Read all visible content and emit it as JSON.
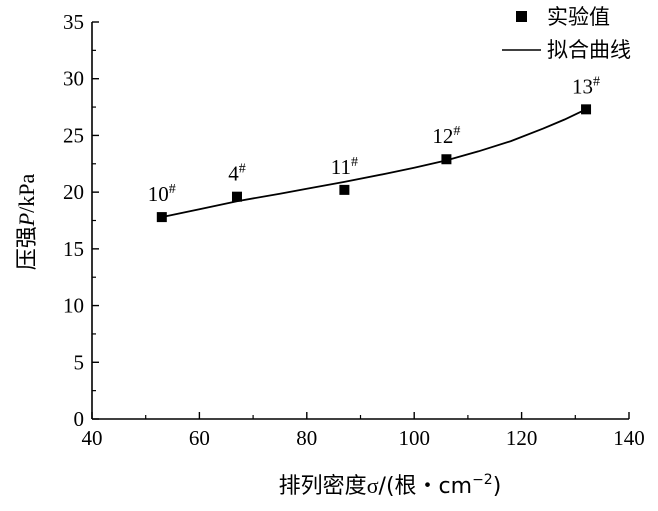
{
  "chart_data": {
    "type": "scatter",
    "title": "",
    "xlabel_prefix": "排列密度",
    "xlabel_symbol": "σ",
    "xlabel_unit_open": "/(根・cm",
    "xlabel_exponent": "−2",
    "xlabel_unit_close": ")",
    "ylabel_prefix": "压强",
    "ylabel_symbol": "P",
    "ylabel_unit": "/kPa",
    "xlim": [
      40,
      140
    ],
    "ylim": [
      0,
      35
    ],
    "x_ticks": [
      40,
      60,
      80,
      100,
      120,
      140
    ],
    "y_ticks": [
      0,
      5,
      10,
      15,
      20,
      25,
      30,
      35
    ],
    "grid": false,
    "legend_position": "top-right",
    "series": [
      {
        "name": "实验值",
        "kind": "scatter",
        "marker": "square",
        "color": "#000000",
        "points": [
          {
            "x": 53,
            "y": 17.8,
            "label": "10",
            "sup": "#"
          },
          {
            "x": 67,
            "y": 19.6,
            "label": "4",
            "sup": "#"
          },
          {
            "x": 87,
            "y": 20.2,
            "label": "11",
            "sup": "#"
          },
          {
            "x": 106,
            "y": 22.9,
            "label": "12",
            "sup": "#"
          },
          {
            "x": 132,
            "y": 27.3,
            "label": "13",
            "sup": "#"
          }
        ]
      },
      {
        "name": "拟合曲线",
        "kind": "line",
        "color": "#000000",
        "x": [
          53,
          60,
          67,
          75,
          80,
          87,
          95,
          100,
          106,
          112,
          118,
          124,
          128,
          132
        ],
        "y": [
          17.8,
          18.5,
          19.2,
          19.85,
          20.3,
          20.9,
          21.65,
          22.15,
          22.8,
          23.6,
          24.5,
          25.6,
          26.4,
          27.3
        ]
      }
    ]
  }
}
